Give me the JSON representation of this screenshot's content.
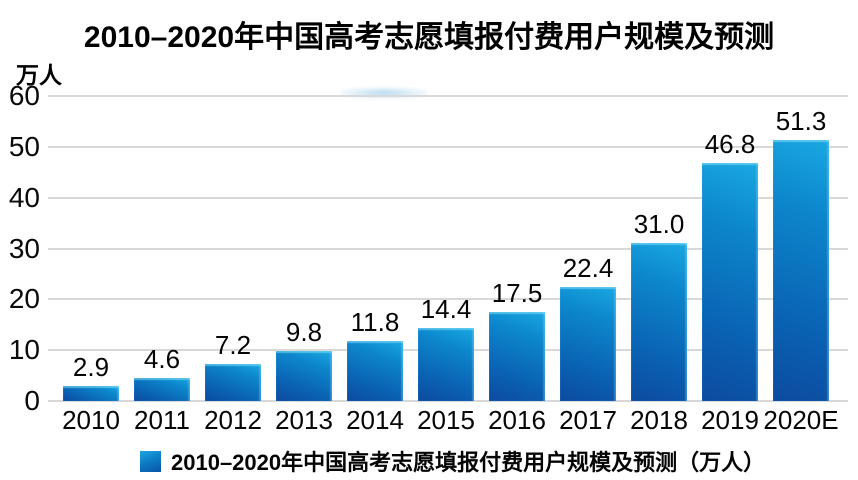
{
  "title": "2010–2020年中国高考志愿填报付费用户规模及预测",
  "y_axis_unit": "万人",
  "legend": {
    "label": "2010–2020年中国高考志愿填报付费用户规模及预测（万人）"
  },
  "colors": {
    "bar_gradient_top": "#1aa8e2",
    "bar_gradient_mid": "#0a60b2",
    "bar_gradient_bottom": "#0c4b9f",
    "gridline": "#d8d8d8",
    "text": "#050505",
    "legend_swatch": "#0d7ec6"
  },
  "chart_data": {
    "type": "bar",
    "categories": [
      "2010",
      "2011",
      "2012",
      "2013",
      "2014",
      "2015",
      "2016",
      "2017",
      "2018",
      "2019",
      "2020E"
    ],
    "values": [
      2.9,
      4.6,
      7.2,
      9.8,
      11.8,
      14.4,
      17.5,
      22.4,
      31.0,
      46.8,
      51.3
    ],
    "title": "2010–2020年中国高考志愿填报付费用户规模及预测",
    "xlabel": "",
    "ylabel": "万人",
    "ylim": [
      0,
      60
    ],
    "yticks": [
      0,
      10,
      20,
      30,
      40,
      50,
      60
    ],
    "grid": true,
    "value_label_decimals": 1,
    "legend": [
      "2010–2020年中国高考志愿填报付费用户规模及预测（万人）"
    ],
    "legend_position": "bottom"
  }
}
